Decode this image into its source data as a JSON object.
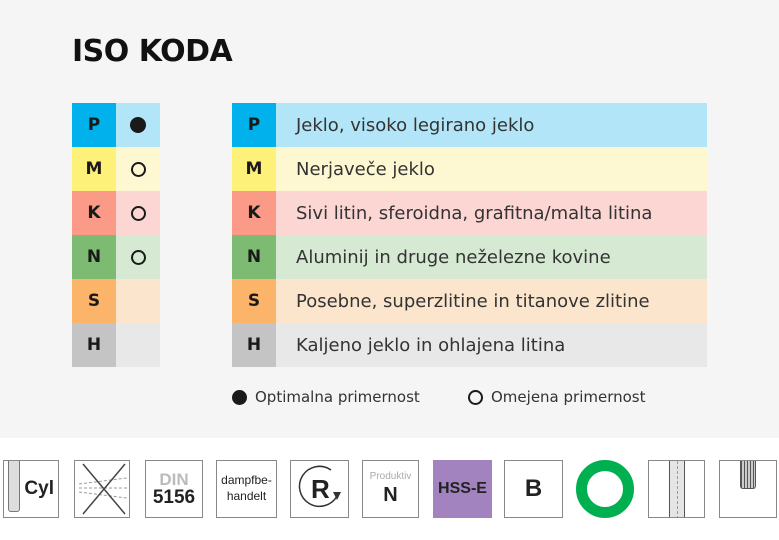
{
  "title": "ISO KODA",
  "colors": {
    "P": [
      "#00b1ec",
      "#b3e5f8"
    ],
    "M": [
      "#fdf17a",
      "#fdf8d2"
    ],
    "K": [
      "#fa9a87",
      "#fbd6d3"
    ],
    "N": [
      "#7dbb72",
      "#d5e9d3"
    ],
    "S": [
      "#fbb469",
      "#fbe5cc"
    ],
    "H": [
      "#c4c4c4",
      "#e8e8e8"
    ]
  },
  "matrix": [
    {
      "code": "P",
      "suitability": "optimal"
    },
    {
      "code": "M",
      "suitability": "limited"
    },
    {
      "code": "K",
      "suitability": "limited"
    },
    {
      "code": "N",
      "suitability": "limited"
    },
    {
      "code": "S",
      "suitability": "none"
    },
    {
      "code": "H",
      "suitability": "none"
    }
  ],
  "materials": [
    {
      "code": "P",
      "label": "Jeklo, visoko legirano jeklo"
    },
    {
      "code": "M",
      "label": "Nerjaveče jeklo"
    },
    {
      "code": "K",
      "label": "Sivi litin, sferoidna, grafitna/malta litina"
    },
    {
      "code": "N",
      "label": "Aluminij in druge neželezne kovine"
    },
    {
      "code": "S",
      "label": "Posebne, superzlitine in titanove zlitine"
    },
    {
      "code": "H",
      "label": "Kaljeno jeklo in ohlajena litina"
    }
  ],
  "legend": {
    "optimal": "Optimalna primernost",
    "limited": "Omejena primernost"
  },
  "icons": {
    "cyl": "Cyl",
    "din_top": "DIN",
    "din_bottom": "5156",
    "steam_top": "dampfbe-",
    "steam_bottom": "handelt",
    "r": "R",
    "prod_top": "Produktiv",
    "prod_bottom": "N",
    "hss": "HSS-E",
    "hss_color": "#a283bf",
    "b": "B",
    "ring_color": "#00b050"
  }
}
